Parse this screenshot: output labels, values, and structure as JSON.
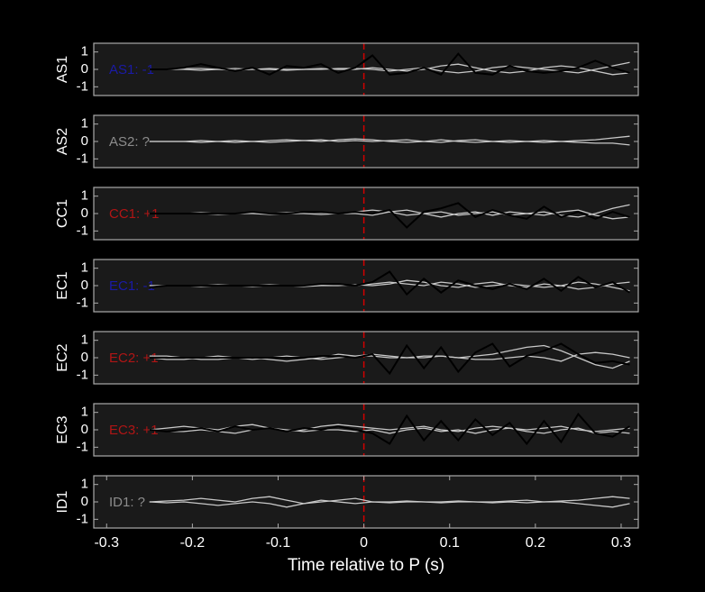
{
  "chart_data": [
    {
      "type": "line",
      "ylabel": "AS1",
      "annotation": "AS1: -1",
      "annotation_color": "#1a1aa6",
      "x": [
        -0.25,
        -0.23,
        -0.21,
        -0.19,
        -0.17,
        -0.15,
        -0.13,
        -0.11,
        -0.09,
        -0.07,
        -0.05,
        -0.03,
        -0.01,
        0.01,
        0.03,
        0.05,
        0.07,
        0.09,
        0.11,
        0.13,
        0.15,
        0.17,
        0.19,
        0.21,
        0.23,
        0.25,
        0.27,
        0.29,
        0.31
      ],
      "series": [
        {
          "color": "#c8c8c8",
          "values": [
            0,
            0,
            0.05,
            0.05,
            0,
            -0.05,
            0,
            0.05,
            0,
            0,
            0.05,
            0,
            0,
            0.1,
            0,
            -0.1,
            0,
            0.2,
            0.3,
            0.1,
            -0.1,
            -0.2,
            -0.1,
            0.1,
            0.2,
            0.1,
            -0.1,
            -0.3,
            -0.2
          ]
        },
        {
          "color": "#c8c8c8",
          "values": [
            0,
            0,
            0,
            -0.05,
            0,
            0.05,
            0,
            0,
            -0.05,
            0,
            0,
            0.05,
            0.05,
            0,
            -0.1,
            0,
            0.1,
            -0.1,
            -0.2,
            -0.1,
            0.1,
            0.2,
            0.1,
            0,
            -0.1,
            -0.2,
            0,
            0.2,
            0.4
          ]
        },
        {
          "color": "#000000",
          "values": [
            0,
            0,
            0.1,
            0.3,
            0.1,
            -0.1,
            0.1,
            -0.3,
            0.2,
            0.1,
            0.3,
            -0.2,
            0.1,
            0.8,
            -0.3,
            -0.2,
            0.1,
            -0.3,
            0.9,
            -0.2,
            -0.3,
            0.2,
            -0.1,
            -0.2,
            -0.1,
            0.1,
            0.5,
            0.1,
            -0.2
          ]
        }
      ],
      "xlim": [
        -0.315,
        0.32
      ],
      "ylim": [
        -1.5,
        1.5
      ],
      "yticks": [
        -1,
        0,
        1
      ],
      "vline": 0
    },
    {
      "type": "line",
      "ylabel": "AS2",
      "annotation": "AS2: ?",
      "annotation_color": "#8c8c8c",
      "x": [
        -0.25,
        -0.23,
        -0.21,
        -0.19,
        -0.17,
        -0.15,
        -0.13,
        -0.11,
        -0.09,
        -0.07,
        -0.05,
        -0.03,
        -0.01,
        0.01,
        0.03,
        0.05,
        0.07,
        0.09,
        0.11,
        0.13,
        0.15,
        0.17,
        0.19,
        0.21,
        0.23,
        0.25,
        0.27,
        0.29,
        0.31
      ],
      "series": [
        {
          "color": "#c8c8c8",
          "values": [
            0,
            0,
            0,
            0.05,
            0,
            -0.05,
            0,
            0.05,
            0.1,
            0.05,
            0,
            0.1,
            0.15,
            0.1,
            0,
            -0.05,
            0,
            0.1,
            0,
            -0.05,
            0,
            0.05,
            0,
            -0.05,
            0,
            0.05,
            0.1,
            0.2,
            0.3
          ]
        },
        {
          "color": "#c8c8c8",
          "values": [
            0,
            0,
            0,
            -0.05,
            0,
            0.05,
            0,
            -0.05,
            0,
            0.05,
            0.1,
            0,
            0.05,
            0,
            0.05,
            0.1,
            0,
            -0.05,
            0.05,
            0.1,
            0,
            -0.05,
            0,
            0.05,
            0,
            -0.05,
            -0.1,
            -0.1,
            -0.2
          ]
        }
      ],
      "xlim": [
        -0.315,
        0.32
      ],
      "ylim": [
        -1.5,
        1.5
      ],
      "yticks": [
        -1,
        0,
        1
      ],
      "vline": 0
    },
    {
      "type": "line",
      "ylabel": "CC1",
      "annotation": "CC1: +1",
      "annotation_color": "#b01515",
      "x": [
        -0.25,
        -0.23,
        -0.21,
        -0.19,
        -0.17,
        -0.15,
        -0.13,
        -0.11,
        -0.09,
        -0.07,
        -0.05,
        -0.03,
        -0.01,
        0.01,
        0.03,
        0.05,
        0.07,
        0.09,
        0.11,
        0.13,
        0.15,
        0.17,
        0.19,
        0.21,
        0.23,
        0.25,
        0.27,
        0.29,
        0.31
      ],
      "series": [
        {
          "color": "#c8c8c8",
          "values": [
            0,
            0,
            0,
            0.05,
            0,
            0,
            0.05,
            0,
            0.05,
            0.1,
            0.05,
            0,
            0.1,
            0.2,
            0.1,
            -0.1,
            0,
            0.1,
            -0.1,
            0,
            0.1,
            -0.1,
            0,
            0.1,
            -0.1,
            -0.2,
            0,
            0.3,
            0.5
          ]
        },
        {
          "color": "#c8c8c8",
          "values": [
            0,
            0,
            0,
            0,
            -0.05,
            0,
            0,
            -0.05,
            0,
            0,
            -0.05,
            0,
            0,
            -0.1,
            0.1,
            0.2,
            0,
            -0.2,
            0,
            0.1,
            -0.1,
            0.1,
            0,
            -0.1,
            0.1,
            0.2,
            -0.1,
            -0.3,
            -0.2
          ]
        },
        {
          "color": "#000000",
          "values": [
            0,
            0,
            0,
            0,
            0,
            0,
            0.1,
            0,
            0,
            0.1,
            0.1,
            0,
            0.1,
            0,
            0.2,
            -0.8,
            0.1,
            0.3,
            0.6,
            -0.2,
            0.2,
            -0.1,
            -0.3,
            0.4,
            -0.2,
            0.1,
            -0.3,
            0.1,
            -0.2
          ]
        }
      ],
      "xlim": [
        -0.315,
        0.32
      ],
      "ylim": [
        -1.5,
        1.5
      ],
      "yticks": [
        -1,
        0,
        1
      ],
      "vline": 0
    },
    {
      "type": "line",
      "ylabel": "EC1",
      "annotation": "EC1: -1",
      "annotation_color": "#1a1aa6",
      "x": [
        -0.25,
        -0.23,
        -0.21,
        -0.19,
        -0.17,
        -0.15,
        -0.13,
        -0.11,
        -0.09,
        -0.07,
        -0.05,
        -0.03,
        -0.01,
        0.01,
        0.03,
        0.05,
        0.07,
        0.09,
        0.11,
        0.13,
        0.15,
        0.17,
        0.19,
        0.21,
        0.23,
        0.25,
        0.27,
        0.29,
        0.31
      ],
      "series": [
        {
          "color": "#c8c8c8",
          "values": [
            0,
            0,
            0,
            0,
            0.05,
            0,
            0,
            0.05,
            0,
            0,
            0.05,
            0.1,
            0,
            0.1,
            0.2,
            0.1,
            0,
            0.2,
            0.1,
            -0.1,
            0,
            0.1,
            0,
            -0.1,
            0,
            0.2,
            0.1,
            -0.1,
            -0.3
          ]
        },
        {
          "color": "#c8c8c8",
          "values": [
            0,
            0,
            0,
            -0.05,
            0,
            0,
            -0.05,
            0,
            0,
            -0.05,
            0,
            0,
            0.05,
            0,
            0.1,
            0.3,
            0.2,
            0,
            -0.1,
            0.1,
            0.2,
            0,
            -0.1,
            0.1,
            0,
            -0.2,
            -0.1,
            0.1,
            0.2
          ]
        },
        {
          "color": "#000000",
          "values": [
            -0.1,
            0,
            0,
            0,
            0,
            0,
            0,
            0,
            0,
            0,
            0.1,
            0.1,
            0,
            0.2,
            0.8,
            -0.5,
            0.4,
            -0.4,
            0.3,
            0,
            -0.2,
            0.1,
            -0.2,
            0.4,
            -0.3,
            0.5,
            -0.1,
            0.2,
            -0.4
          ]
        }
      ],
      "xlim": [
        -0.315,
        0.32
      ],
      "ylim": [
        -1.5,
        1.5
      ],
      "yticks": [
        -1,
        0,
        1
      ],
      "vline": 0
    },
    {
      "type": "line",
      "ylabel": "EC2",
      "annotation": "EC2: +1",
      "annotation_color": "#b01515",
      "x": [
        -0.25,
        -0.23,
        -0.21,
        -0.19,
        -0.17,
        -0.15,
        -0.13,
        -0.11,
        -0.09,
        -0.07,
        -0.05,
        -0.03,
        -0.01,
        0.01,
        0.03,
        0.05,
        0.07,
        0.09,
        0.11,
        0.13,
        0.15,
        0.17,
        0.19,
        0.21,
        0.23,
        0.25,
        0.27,
        0.29,
        0.31
      ],
      "series": [
        {
          "color": "#c8c8c8",
          "values": [
            0.1,
            0.1,
            0,
            -0.1,
            -0.1,
            0,
            0,
            -0.1,
            -0.2,
            -0.1,
            0,
            0.2,
            0.1,
            0.1,
            0,
            0,
            0.1,
            0.1,
            0,
            0.1,
            0.2,
            0.4,
            0.6,
            0.7,
            0.4,
            0,
            -0.4,
            -0.6,
            -0.2
          ]
        },
        {
          "color": "#c8c8c8",
          "values": [
            0,
            -0.1,
            -0.1,
            0,
            0.1,
            0,
            -0.1,
            0,
            0.1,
            0,
            -0.1,
            0,
            0.1,
            0.2,
            0.1,
            0,
            0,
            0.1,
            0,
            -0.1,
            -0.1,
            0,
            0.1,
            0,
            -0.2,
            0.2,
            0.3,
            0.2,
            0
          ]
        },
        {
          "color": "#000000",
          "values": [
            0,
            0,
            0,
            0,
            0,
            0,
            0,
            0,
            0,
            0,
            0.1,
            0.1,
            0,
            0.2,
            -0.9,
            0.7,
            -0.6,
            0.6,
            -0.8,
            0.3,
            0.8,
            -0.5,
            0.1,
            0.4,
            0.8,
            0.2,
            -0.3,
            -0.2,
            -0.4
          ]
        }
      ],
      "xlim": [
        -0.315,
        0.32
      ],
      "ylim": [
        -1.5,
        1.5
      ],
      "yticks": [
        -1,
        0,
        1
      ],
      "vline": 0
    },
    {
      "type": "line",
      "ylabel": "EC3",
      "annotation": "EC3: +1",
      "annotation_color": "#b01515",
      "x": [
        -0.25,
        -0.23,
        -0.21,
        -0.19,
        -0.17,
        -0.15,
        -0.13,
        -0.11,
        -0.09,
        -0.07,
        -0.05,
        -0.03,
        -0.01,
        0.01,
        0.03,
        0.05,
        0.07,
        0.09,
        0.11,
        0.13,
        0.15,
        0.17,
        0.19,
        0.21,
        0.23,
        0.25,
        0.27,
        0.29,
        0.31
      ],
      "series": [
        {
          "color": "#c8c8c8",
          "values": [
            0,
            0.1,
            0.2,
            0.1,
            0,
            0.2,
            0.3,
            0.1,
            -0.1,
            0,
            0.2,
            0.3,
            0.2,
            0.1,
            0,
            0.1,
            0.2,
            0,
            -0.1,
            0.1,
            0.2,
            0.1,
            0,
            0.1,
            0.2,
            0,
            -0.1,
            0,
            0.1
          ]
        },
        {
          "color": "#c8c8c8",
          "values": [
            0,
            -0.1,
            -0.1,
            0,
            -0.1,
            -0.2,
            0,
            0.1,
            0,
            -0.1,
            0,
            0,
            -0.1,
            0,
            -0.2,
            0,
            0.1,
            -0.1,
            0,
            -0.2,
            0,
            0.1,
            -0.1,
            -0.2,
            0,
            0.1,
            -0.2,
            -0.1,
            -0.2
          ]
        },
        {
          "color": "#000000",
          "values": [
            0,
            -0.1,
            0,
            0.1,
            -0.1,
            0.2,
            0,
            0.1,
            -0.1,
            0.1,
            0,
            0.2,
            0,
            -0.2,
            -0.8,
            0.8,
            -0.6,
            0.5,
            -0.6,
            0.6,
            -0.3,
            0.4,
            -0.8,
            0.5,
            -0.7,
            0.9,
            -0.2,
            -0.4,
            0.2
          ]
        }
      ],
      "xlim": [
        -0.315,
        0.32
      ],
      "ylim": [
        -1.5,
        1.5
      ],
      "yticks": [
        -1,
        0,
        1
      ],
      "vline": 0
    },
    {
      "type": "line",
      "ylabel": "ID1",
      "annotation": "ID1: ?",
      "annotation_color": "#8c8c8c",
      "x": [
        -0.25,
        -0.23,
        -0.21,
        -0.19,
        -0.17,
        -0.15,
        -0.13,
        -0.11,
        -0.09,
        -0.07,
        -0.05,
        -0.03,
        -0.01,
        0.01,
        0.03,
        0.05,
        0.07,
        0.09,
        0.11,
        0.13,
        0.15,
        0.17,
        0.19,
        0.21,
        0.23,
        0.25,
        0.27,
        0.29,
        0.31
      ],
      "series": [
        {
          "color": "#c8c8c8",
          "values": [
            0,
            0.05,
            0.1,
            0.2,
            0.1,
            0,
            0.2,
            0.3,
            0.1,
            -0.1,
            0,
            0.1,
            0.2,
            0,
            0,
            0.05,
            0,
            0,
            0.05,
            0,
            0,
            0.05,
            0.1,
            0,
            0.05,
            0.1,
            0.2,
            0.3,
            0.2
          ]
        },
        {
          "color": "#c8c8c8",
          "values": [
            0,
            -0.05,
            0,
            -0.1,
            -0.2,
            -0.1,
            0,
            -0.1,
            -0.3,
            -0.1,
            0.1,
            0,
            -0.1,
            0,
            -0.05,
            0,
            0,
            -0.05,
            0,
            0,
            -0.05,
            0,
            -0.05,
            0,
            0,
            -0.1,
            -0.2,
            -0.3,
            -0.1
          ]
        }
      ],
      "xlim": [
        -0.315,
        0.32
      ],
      "ylim": [
        -1.5,
        1.5
      ],
      "yticks": [
        -1,
        0,
        1
      ],
      "vline": 0,
      "xticks": [
        -0.3,
        -0.2,
        -0.1,
        0,
        0.1,
        0.2,
        0.3
      ],
      "xlabel": "Time relative to P (s)"
    }
  ]
}
